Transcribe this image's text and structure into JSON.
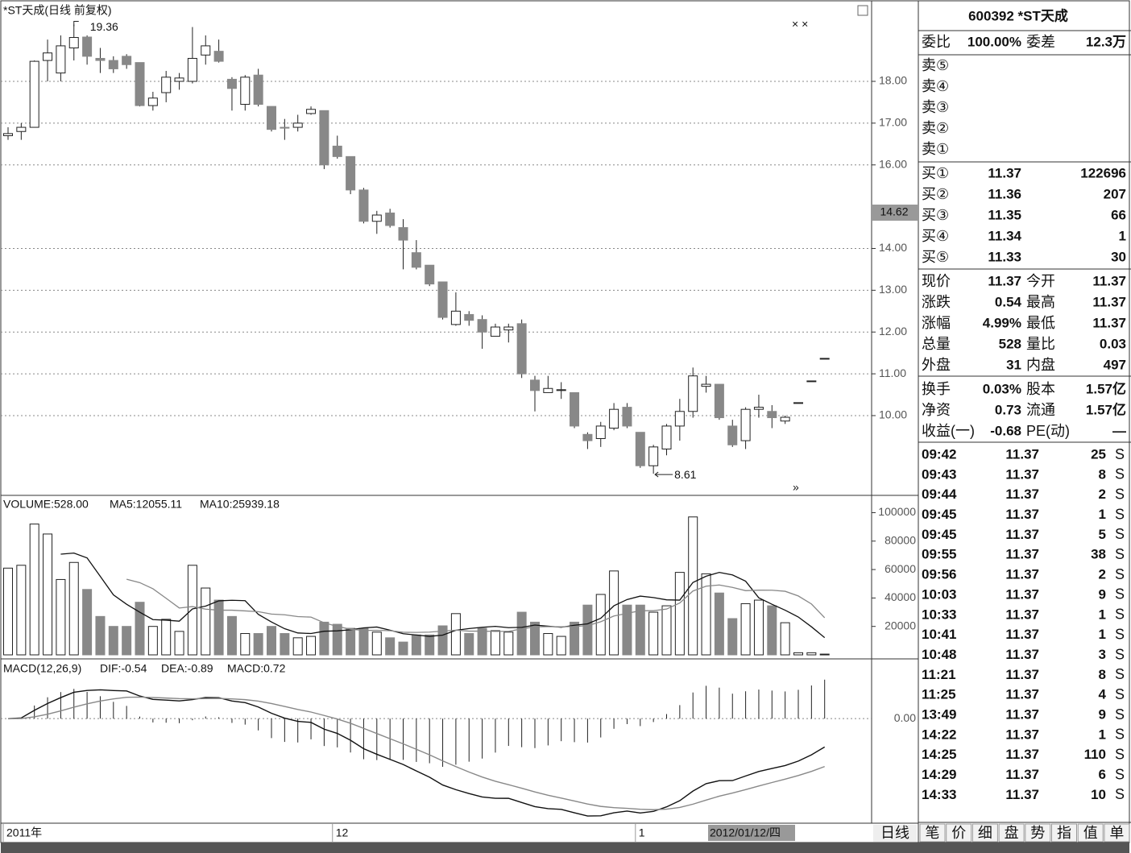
{
  "chart_data": [
    {
      "type": "candlestick",
      "title": "*ST天成(日线 前复权)",
      "categories": [
        "2011年",
        null,
        null,
        null,
        null,
        null,
        null,
        null,
        null,
        null,
        null,
        null,
        null,
        null,
        null,
        null,
        null,
        null,
        null,
        null,
        null,
        null,
        null,
        null,
        null,
        "12",
        null,
        null,
        null,
        null,
        null,
        null,
        null,
        null,
        null,
        null,
        null,
        null,
        null,
        null,
        null,
        null,
        null,
        null,
        null,
        null,
        null,
        null,
        "1",
        null,
        null,
        null,
        null,
        null,
        null,
        null,
        null,
        null,
        null,
        null,
        null,
        null,
        null
      ],
      "open": [
        16.7,
        16.8,
        16.9,
        18.5,
        18.2,
        18.8,
        19.06,
        18.55,
        18.5,
        18.6,
        18.45,
        17.42,
        17.73,
        18.0,
        18.0,
        18.63,
        18.72,
        18.05,
        17.45,
        18.15,
        17.4,
        16.9,
        16.9,
        17.23,
        17.3,
        16.45,
        16.2,
        15.4,
        14.65,
        14.85,
        14.5,
        13.9,
        13.6,
        13.2,
        12.18,
        12.42,
        12.3,
        11.9,
        12.05,
        12.2,
        10.85,
        10.55,
        10.6,
        10.55,
        9.55,
        9.45,
        9.7,
        10.2,
        9.6,
        8.8,
        9.2,
        9.75,
        10.1,
        10.7,
        10.75,
        9.75,
        9.4,
        10.15,
        10.1,
        9.87,
        10.31,
        10.83,
        11.37
      ],
      "high": [
        16.9,
        17.0,
        18.5,
        19.0,
        19.1,
        19.36,
        19.1,
        18.8,
        18.6,
        18.65,
        18.45,
        17.75,
        18.25,
        18.2,
        19.3,
        19.1,
        19.0,
        18.1,
        18.15,
        18.3,
        17.4,
        17.1,
        17.2,
        17.4,
        17.3,
        16.7,
        16.2,
        15.45,
        14.9,
        14.95,
        14.7,
        14.2,
        13.6,
        13.2,
        12.95,
        12.5,
        12.4,
        12.2,
        12.2,
        12.3,
        10.95,
        10.95,
        10.8,
        10.55,
        9.6,
        9.85,
        10.3,
        10.3,
        9.6,
        9.3,
        9.8,
        10.4,
        11.15,
        10.95,
        10.75,
        9.9,
        10.2,
        10.5,
        10.25,
        10.0,
        10.31,
        10.83,
        11.37
      ],
      "low": [
        16.6,
        16.6,
        16.9,
        18.0,
        18.0,
        18.5,
        18.4,
        18.2,
        18.2,
        18.3,
        17.4,
        17.3,
        17.5,
        17.8,
        17.95,
        18.4,
        18.45,
        17.3,
        17.3,
        17.4,
        16.8,
        16.6,
        16.8,
        17.2,
        15.9,
        16.15,
        15.3,
        14.6,
        14.35,
        14.5,
        13.5,
        13.5,
        13.1,
        12.3,
        12.15,
        12.15,
        11.6,
        11.9,
        11.75,
        10.9,
        10.1,
        10.55,
        10.4,
        9.7,
        9.2,
        9.25,
        9.65,
        9.7,
        8.75,
        8.61,
        9.05,
        9.4,
        9.95,
        10.55,
        9.9,
        9.25,
        9.2,
        9.95,
        9.7,
        9.8,
        10.31,
        10.83,
        11.37
      ],
      "close": [
        16.75,
        16.9,
        18.48,
        18.68,
        18.85,
        19.05,
        18.6,
        18.5,
        18.3,
        18.4,
        17.42,
        17.6,
        18.1,
        18.08,
        18.55,
        18.85,
        18.48,
        17.83,
        18.1,
        17.45,
        16.85,
        16.88,
        17.0,
        17.33,
        16.0,
        16.2,
        15.4,
        14.65,
        14.8,
        14.55,
        14.2,
        13.55,
        13.15,
        12.35,
        12.5,
        12.28,
        12.0,
        12.12,
        12.12,
        11.0,
        10.6,
        10.65,
        10.62,
        9.75,
        9.4,
        9.75,
        10.15,
        9.75,
        8.8,
        9.25,
        9.75,
        10.1,
        10.95,
        10.75,
        9.95,
        9.3,
        10.15,
        10.2,
        9.95,
        9.96,
        10.31,
        10.83,
        11.37
      ],
      "high_label": "19.36",
      "low_label": "8.61",
      "cursor_price": "14.62",
      "cursor_date": "2012/01/12/四",
      "ylim": [
        8.11,
        19.87
      ],
      "yticks": [
        {
          "value": 10,
          "label": "10.00"
        },
        {
          "value": 11,
          "label": "11.00"
        },
        {
          "value": 12,
          "label": "12.00"
        },
        {
          "value": 13,
          "label": "13.00"
        },
        {
          "value": 14,
          "label": "14.00"
        },
        {
          "value": 16,
          "label": "16.00"
        },
        {
          "value": 17,
          "label": "17.00"
        },
        {
          "value": 18,
          "label": "18.00"
        }
      ],
      "grid": true,
      "up_color": "#ffffff",
      "down_color": "#888888"
    },
    {
      "type": "volume",
      "title": "VOLUME:528.00",
      "ma5": "MA5:12055.11",
      "ma10": "MA10:25939.18",
      "values": [
        61000,
        63000,
        92000,
        85000,
        53000,
        65000,
        46000,
        27000,
        20000,
        20000,
        37000,
        20000,
        25000,
        16500,
        63000,
        47000,
        38500,
        27000,
        15000,
        15000,
        20000,
        15000,
        12000,
        13000,
        23000,
        21500,
        18700,
        18700,
        16000,
        12000,
        9000,
        14000,
        14000,
        20400,
        29000,
        15000,
        18700,
        17000,
        16000,
        30000,
        23000,
        15000,
        13000,
        23000,
        35000,
        42500,
        59000,
        35000,
        35000,
        30000,
        34500,
        58000,
        97000,
        57000,
        43500,
        25500,
        36000,
        38500,
        34500,
        22600,
        1500,
        1500,
        528
      ],
      "ylim": [
        0,
        108200
      ],
      "yticks": [
        20000,
        40000,
        60000,
        80000,
        100000
      ]
    },
    {
      "type": "macd",
      "title": "MACD(12,26,9)",
      "dif": "DIF:-0.54",
      "dea": "DEA:-0.89",
      "macd": "MACD:0.72",
      "ylim": [
        -1.85,
        1.0
      ],
      "yticks": [
        {
          "value": 0,
          "label": "0.00"
        }
      ]
    }
  ],
  "quote": {
    "title": "600392 *ST天成",
    "ratio_label": "委比",
    "ratio": "100.00%",
    "diff_label": "委差",
    "diff": "12.3万"
  },
  "sell": [
    "卖⑤",
    "卖④",
    "卖③",
    "卖②",
    "卖①"
  ],
  "buy": [
    [
      "买①",
      "11.37",
      "122696"
    ],
    [
      "买②",
      "11.36",
      "207"
    ],
    [
      "买③",
      "11.35",
      "66"
    ],
    [
      "买④",
      "11.34",
      "1"
    ],
    [
      "买⑤",
      "11.33",
      "30"
    ]
  ],
  "stats": [
    [
      "现价",
      "11.37",
      "今开",
      "11.37"
    ],
    [
      "涨跌",
      "0.54",
      "最高",
      "11.37"
    ],
    [
      "涨幅",
      "4.99%",
      "最低",
      "11.37"
    ],
    [
      "总量",
      "528",
      "量比",
      "0.03"
    ],
    [
      "外盘",
      "31",
      "内盘",
      "497"
    ]
  ],
  "stats2": [
    [
      "换手",
      "0.03%",
      "股本",
      "1.57亿"
    ],
    [
      "净资",
      "0.73",
      "流通",
      "1.57亿"
    ],
    [
      "收益(一)",
      "-0.68",
      "PE(动)",
      "—"
    ]
  ],
  "trades": [
    [
      "09:42",
      "11.37",
      "25",
      "S"
    ],
    [
      "09:43",
      "11.37",
      "8",
      "S"
    ],
    [
      "09:44",
      "11.37",
      "2",
      "S"
    ],
    [
      "09:45",
      "11.37",
      "1",
      "S"
    ],
    [
      "09:45",
      "11.37",
      "5",
      "S"
    ],
    [
      "09:55",
      "11.37",
      "38",
      "S"
    ],
    [
      "09:56",
      "11.37",
      "2",
      "S"
    ],
    [
      "10:03",
      "11.37",
      "9",
      "S"
    ],
    [
      "10:33",
      "11.37",
      "1",
      "S"
    ],
    [
      "10:41",
      "11.37",
      "1",
      "S"
    ],
    [
      "10:48",
      "11.37",
      "3",
      "S"
    ],
    [
      "11:21",
      "11.37",
      "8",
      "S"
    ],
    [
      "11:25",
      "11.37",
      "4",
      "S"
    ],
    [
      "13:49",
      "11.37",
      "9",
      "S"
    ],
    [
      "14:22",
      "11.37",
      "1",
      "S"
    ],
    [
      "14:25",
      "11.37",
      "110",
      "S"
    ],
    [
      "14:29",
      "11.37",
      "6",
      "S"
    ],
    [
      "14:33",
      "11.37",
      "10",
      "S"
    ]
  ],
  "tabs": [
    "笔",
    "价",
    "细",
    "盘",
    "势",
    "指",
    "值",
    "单"
  ],
  "period": "日线"
}
